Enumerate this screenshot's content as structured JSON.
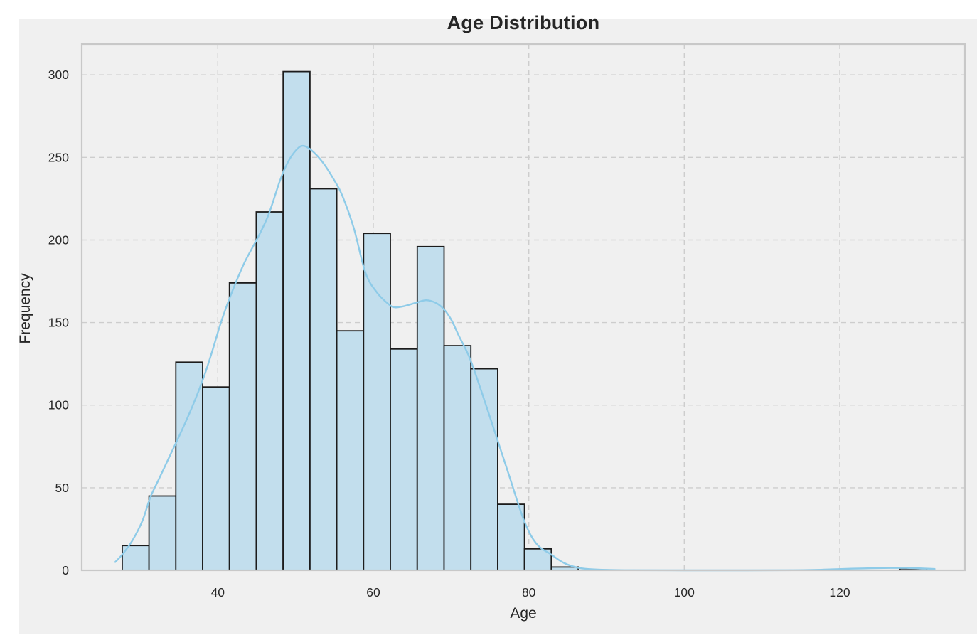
{
  "figure": {
    "outer_background": "#ffffff",
    "background": "#f0f0f0"
  },
  "chart_data": {
    "type": "bar",
    "subtype": "histogram_with_kde",
    "title": "Age Distribution",
    "xlabel": "Age",
    "ylabel": "Frequency",
    "legend": "none",
    "grid": {
      "visible": true,
      "style": "dashed"
    },
    "xlim": [
      22.5,
      136.1
    ],
    "ylim": [
      0,
      318.6
    ],
    "xticks": [
      40,
      60,
      80,
      100,
      120
    ],
    "yticks": [
      0,
      50,
      100,
      150,
      200,
      250,
      300
    ],
    "bins": {
      "start": 27.7,
      "width": 3.45,
      "count": 30
    },
    "counts": [
      15,
      45,
      126,
      111,
      174,
      217,
      302,
      231,
      145,
      204,
      134,
      196,
      136,
      122,
      40,
      13,
      2,
      0,
      0,
      0,
      0,
      0,
      0,
      0,
      0,
      0,
      0,
      0,
      0,
      1
    ],
    "kde": {
      "name": "kde-curve",
      "points": [
        [
          26.8,
          5
        ],
        [
          27.7,
          9.5
        ],
        [
          29.0,
          18
        ],
        [
          30.3,
          30
        ],
        [
          31.3,
          44
        ],
        [
          32.3,
          54
        ],
        [
          33.9,
          70
        ],
        [
          35.3,
          84
        ],
        [
          36.8,
          100
        ],
        [
          38.2,
          117
        ],
        [
          39.3,
          133
        ],
        [
          40.4,
          150
        ],
        [
          41.7,
          167
        ],
        [
          43.4,
          186
        ],
        [
          45.1,
          201
        ],
        [
          46.5,
          215
        ],
        [
          48.0,
          236
        ],
        [
          49.0,
          247
        ],
        [
          50.0,
          254
        ],
        [
          50.9,
          257
        ],
        [
          52.0,
          254.5
        ],
        [
          53.5,
          247
        ],
        [
          55.0,
          236
        ],
        [
          56.0,
          227
        ],
        [
          57.5,
          207
        ],
        [
          59.0,
          180
        ],
        [
          60.5,
          168
        ],
        [
          62.0,
          161
        ],
        [
          62.8,
          159.2
        ],
        [
          64.0,
          160
        ],
        [
          65.5,
          162
        ],
        [
          66.8,
          163.5
        ],
        [
          68.0,
          162
        ],
        [
          69.0,
          158.5
        ],
        [
          70.0,
          152
        ],
        [
          71.0,
          142
        ],
        [
          72.4,
          128.5
        ],
        [
          74.0,
          107
        ],
        [
          75.9,
          80
        ],
        [
          77.5,
          57
        ],
        [
          79.4,
          30
        ],
        [
          81.0,
          16
        ],
        [
          82.9,
          9.5
        ],
        [
          84.5,
          4.5
        ],
        [
          86.3,
          1.6
        ],
        [
          88.0,
          0.7
        ],
        [
          90.0,
          0.3
        ],
        [
          93.0,
          0.1
        ],
        [
          100.0,
          0
        ],
        [
          108.0,
          0
        ],
        [
          114.0,
          0.1
        ],
        [
          117.0,
          0.3
        ],
        [
          119.5,
          0.7
        ],
        [
          121.5,
          1.0
        ],
        [
          124.0,
          1.25
        ],
        [
          126.5,
          1.4
        ],
        [
          128.5,
          1.4
        ],
        [
          130.0,
          1.25
        ],
        [
          131.3,
          1.0
        ],
        [
          132.2,
          0.8
        ]
      ]
    },
    "colors": {
      "plot_bg": "#f0f0f0",
      "frame": "#c8c8c8",
      "grid": "#cdcdcd",
      "bar_fill": "#c2deed",
      "bar_edge": "#1c1c1c",
      "kde_line": "#8ecbe8",
      "text": "#262626"
    }
  }
}
